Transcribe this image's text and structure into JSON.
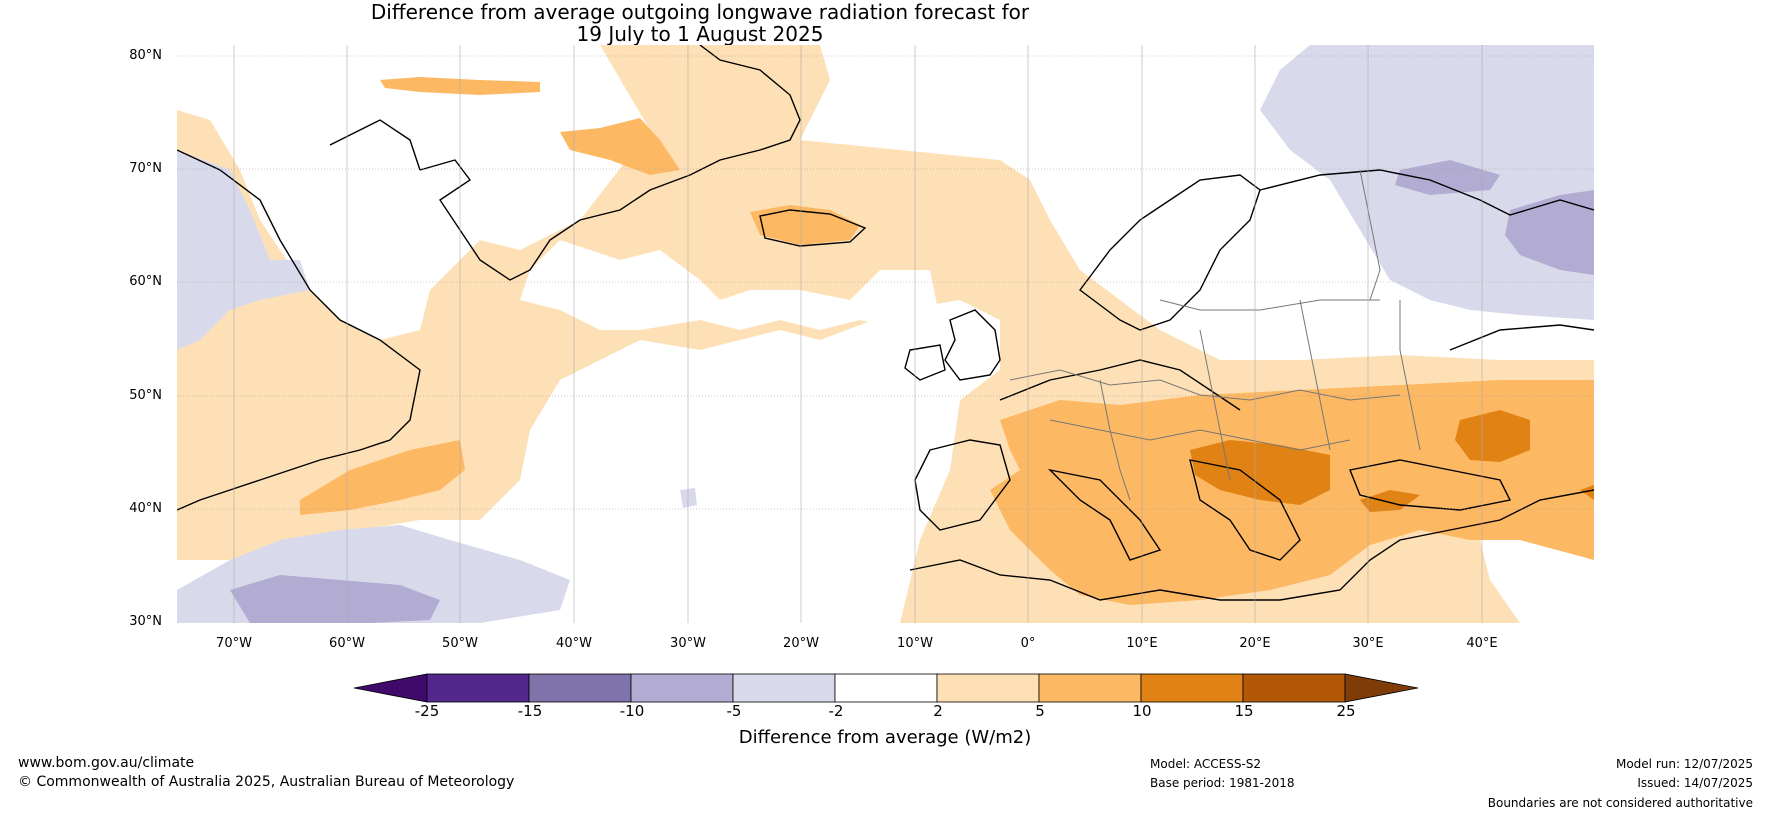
{
  "title": {
    "line1": "Difference from average outgoing longwave radiation forecast for",
    "line2": "19 July to 1 August 2025"
  },
  "map": {
    "lat_labels": [
      "80°N",
      "70°N",
      "60°N",
      "50°N",
      "40°N",
      "30°N"
    ],
    "lon_labels": [
      "70°W",
      "60°W",
      "50°W",
      "40°W",
      "30°W",
      "20°W",
      "10°W",
      "0°",
      "10°E",
      "20°E",
      "30°E",
      "40°E"
    ],
    "extent": {
      "lon_min": -75,
      "lon_max": 50,
      "lat_min": 30,
      "lat_max": 81
    }
  },
  "colorbar": {
    "label": "Difference from average (W/m2)",
    "ticks": [
      "-25",
      "-15",
      "-10",
      "-5",
      "-2",
      "2",
      "5",
      "10",
      "15",
      "25"
    ],
    "colors": [
      "#3f0a6b",
      "#54278f",
      "#8073ac",
      "#b2abd2",
      "#d8daeb",
      "#ffffff",
      "#fee0b6",
      "#fdb863",
      "#e08214",
      "#b35806",
      "#7f3b08"
    ]
  },
  "footer": {
    "website": "www.bom.gov.au/climate",
    "copyright": "© Commonwealth of Australia 2025, Australian Bureau of Meteorology",
    "model": "Model: ACCESS-S2",
    "base_period": "Base period: 1981-2018",
    "model_run": "Model run: 12/07/2025",
    "issued": "Issued: 14/07/2025",
    "disclaimer": "Boundaries are not considered authoritative"
  }
}
